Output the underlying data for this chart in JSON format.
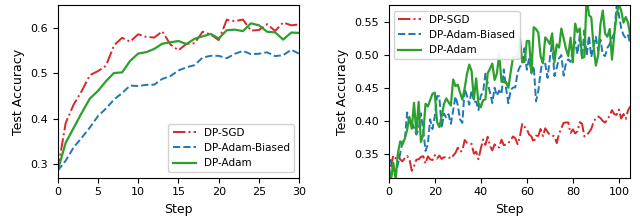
{
  "left": {
    "xlim": [
      0,
      30
    ],
    "ylim": [
      0.27,
      0.65
    ],
    "yticks": [
      0.3,
      0.4,
      0.5,
      0.6
    ],
    "xticks": [
      0,
      5,
      10,
      15,
      20,
      25,
      30
    ],
    "xlabel": "Step",
    "ylabel": "Test Accuracy",
    "legend_loc": "lower right"
  },
  "right": {
    "xlim": [
      0,
      105
    ],
    "ylim": [
      0.315,
      0.575
    ],
    "yticks": [
      0.35,
      0.4,
      0.45,
      0.5,
      0.55
    ],
    "xticks": [
      0,
      20,
      40,
      60,
      80,
      100
    ],
    "xlabel": "Step",
    "ylabel": "Test Accuracy",
    "legend_loc": "upper left"
  },
  "colors": {
    "sgd": "#d62728",
    "biased": "#1f77b4",
    "adam": "#2ca02c"
  },
  "labels": {
    "sgd": "DP-SGD",
    "biased": "DP-Adam-Biased",
    "adam": "DP-Adam"
  }
}
